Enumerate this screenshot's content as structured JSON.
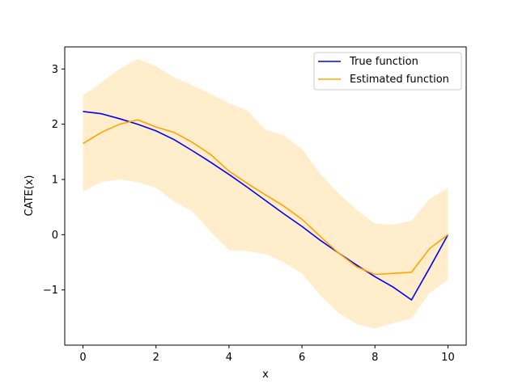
{
  "chart_data": {
    "type": "line",
    "title": "",
    "xlabel": "x",
    "ylabel": "CATE(x)",
    "xlim": [
      -0.5,
      10.5
    ],
    "ylim": [
      -2.0,
      3.4
    ],
    "xticks": [
      0,
      2,
      4,
      6,
      8,
      10
    ],
    "yticks": [
      -1,
      0,
      1,
      2,
      3
    ],
    "grid": false,
    "legend_position": "top-right",
    "colors": {
      "true": "#0000ff",
      "estimated": "#ffa500",
      "band": "#ffa500"
    },
    "x": [
      0,
      0.5,
      1,
      1.5,
      2,
      2.5,
      3,
      3.5,
      4,
      4.5,
      5,
      5.5,
      6,
      6.5,
      7,
      7.5,
      8,
      8.5,
      9,
      9.5,
      10
    ],
    "series": [
      {
        "name": "True function",
        "color": "#0000ff",
        "values": [
          2.23,
          2.19,
          2.1,
          2.0,
          1.88,
          1.72,
          1.52,
          1.31,
          1.09,
          0.86,
          0.62,
          0.38,
          0.15,
          -0.1,
          -0.33,
          -0.55,
          -0.76,
          -0.95,
          -1.18,
          -0.6,
          0.0
        ]
      },
      {
        "name": "Estimated function",
        "color": "#ffa500",
        "values": [
          1.65,
          1.85,
          2.0,
          2.08,
          1.95,
          1.85,
          1.67,
          1.45,
          1.15,
          0.93,
          0.72,
          0.52,
          0.28,
          -0.03,
          -0.33,
          -0.58,
          -0.72,
          -0.7,
          -0.68,
          -0.25,
          0.0
        ],
        "band_lower": [
          0.78,
          0.95,
          1.0,
          0.95,
          0.85,
          0.6,
          0.42,
          0.05,
          -0.28,
          -0.3,
          -0.35,
          -0.5,
          -0.7,
          -1.1,
          -1.42,
          -1.62,
          -1.7,
          -1.6,
          -1.52,
          -1.05,
          -0.82
        ],
        "band_upper": [
          2.52,
          2.75,
          3.0,
          3.18,
          3.05,
          2.85,
          2.7,
          2.55,
          2.38,
          2.25,
          1.9,
          1.8,
          1.55,
          1.1,
          0.75,
          0.45,
          0.2,
          0.18,
          0.25,
          0.65,
          0.85
        ]
      }
    ]
  }
}
